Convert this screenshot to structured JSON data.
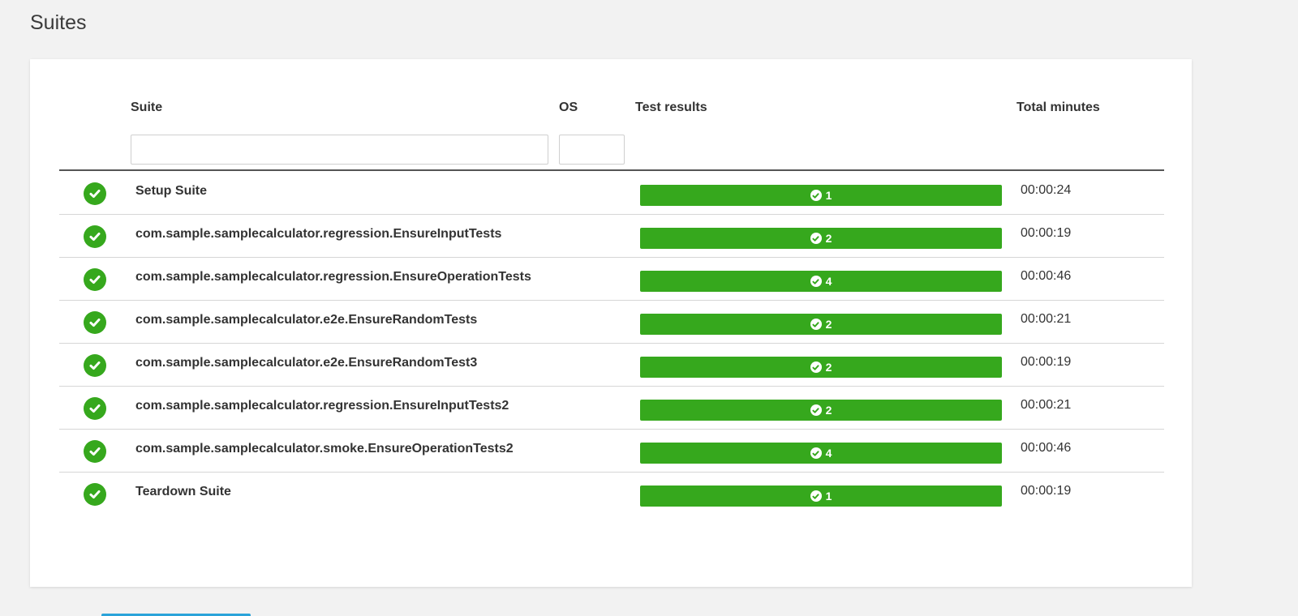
{
  "page": {
    "title": "Suites"
  },
  "table": {
    "headers": {
      "suite": "Suite",
      "os": "OS",
      "test_results": "Test results",
      "total_minutes": "Total minutes"
    },
    "filters": {
      "suite_value": "",
      "os_value": ""
    },
    "rows": [
      {
        "status": "passed",
        "suite": "Setup Suite",
        "passed": "1",
        "minutes": "00:00:24"
      },
      {
        "status": "passed",
        "suite": "com.sample.samplecalculator.regression.EnsureInputTests",
        "passed": "2",
        "minutes": "00:00:19"
      },
      {
        "status": "passed",
        "suite": "com.sample.samplecalculator.regression.EnsureOperationTests",
        "passed": "4",
        "minutes": "00:00:46"
      },
      {
        "status": "passed",
        "suite": "com.sample.samplecalculator.e2e.EnsureRandomTests",
        "passed": "2",
        "minutes": "00:00:21"
      },
      {
        "status": "passed",
        "suite": "com.sample.samplecalculator.e2e.EnsureRandomTest3",
        "passed": "2",
        "minutes": "00:00:19"
      },
      {
        "status": "passed",
        "suite": "com.sample.samplecalculator.regression.EnsureInputTests2",
        "passed": "2",
        "minutes": "00:00:21"
      },
      {
        "status": "passed",
        "suite": "com.sample.samplecalculator.smoke.EnsureOperationTests2",
        "passed": "4",
        "minutes": "00:00:46"
      },
      {
        "status": "passed",
        "suite": "Teardown Suite",
        "passed": "1",
        "minutes": "00:00:19"
      }
    ]
  },
  "colors": {
    "pass_green": "#36a81d",
    "background": "#f2f2f2",
    "accent_blue": "#2aa3d9"
  },
  "icons": {
    "status": "check-circle-icon",
    "result": "check-circle-icon"
  }
}
